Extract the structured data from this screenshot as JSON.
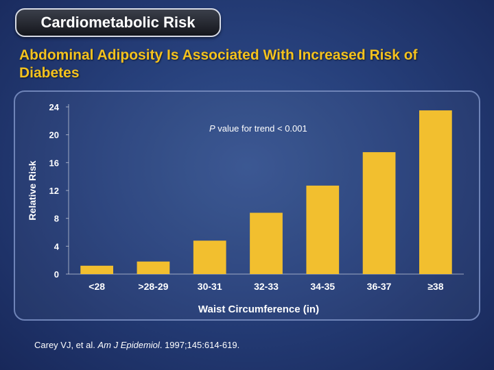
{
  "banner": {
    "title": "Cardiometabolic Risk"
  },
  "slide": {
    "subtitle": "Abdominal Adiposity Is Associated With Increased Risk of Diabetes"
  },
  "chart_data": {
    "type": "bar",
    "categories": [
      "<28",
      ">28-29",
      "30-31",
      "32-33",
      "34-35",
      "36-37",
      "≥38"
    ],
    "values": [
      1.2,
      1.8,
      4.8,
      8.8,
      12.7,
      17.5,
      23.5
    ],
    "ylabel": "Relative Risk",
    "xlabel": "Waist Circumference (in)",
    "ylim": [
      0,
      24
    ],
    "yticks": [
      0,
      4,
      8,
      12,
      16,
      20,
      24
    ],
    "annotation": {
      "italic": "P",
      "text": " value for trend < 0.001"
    },
    "bar_color": "#f2bf2f"
  },
  "citation": {
    "authors": "Carey VJ, et al. ",
    "journal": "Am J Epidemiol",
    "details": ". 1997;145:614-619."
  }
}
